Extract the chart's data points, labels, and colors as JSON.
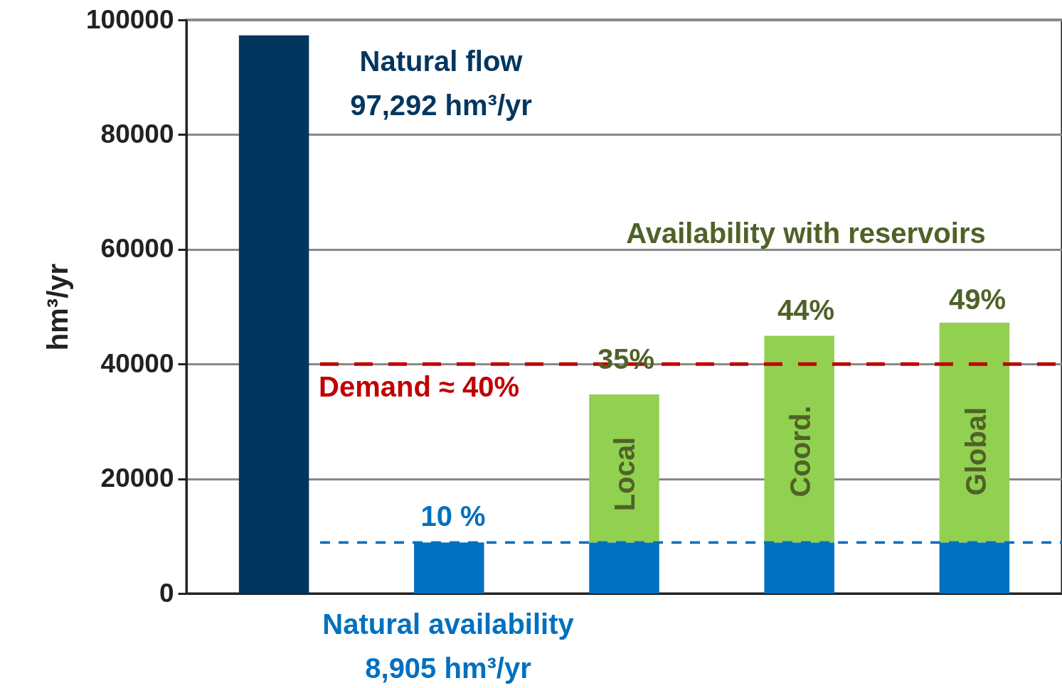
{
  "chart_data": {
    "type": "bar",
    "stacked": true,
    "ylabel": "hm³/yr",
    "categories": [
      null,
      null,
      null,
      null,
      null
    ],
    "series": [
      {
        "color": "#03365f",
        "values": [
          97292,
          null,
          null,
          null,
          null
        ]
      },
      {
        "color": "#0070c0",
        "values": [
          null,
          8905,
          8905,
          8905,
          8905
        ]
      },
      {
        "color": "#92d050",
        "values": [
          null,
          null,
          25800,
          36000,
          38300
        ]
      }
    ],
    "ylim": [
      0,
      100000
    ],
    "yticks": [
      0,
      20000,
      40000,
      60000,
      80000,
      100000
    ],
    "grid": "y",
    "tick_labels": "y",
    "legend": false,
    "ref_lines": [
      {
        "axis": "y",
        "value": 40000,
        "label": "Demand ≈ 40%",
        "color": "#c00000",
        "line_style": "dashed"
      },
      {
        "axis": "y",
        "value": 8905,
        "color": "#0070c0",
        "line_style": "dashed"
      }
    ],
    "annotations": [
      "Natural flow\n97,292 hm³/yr",
      "Availability with reservoirs",
      "Local",
      "Coord.",
      "Global",
      "Natural availability\n8,905 hm³/yr",
      "10 %",
      "35%",
      "44%",
      "49%"
    ]
  }
}
